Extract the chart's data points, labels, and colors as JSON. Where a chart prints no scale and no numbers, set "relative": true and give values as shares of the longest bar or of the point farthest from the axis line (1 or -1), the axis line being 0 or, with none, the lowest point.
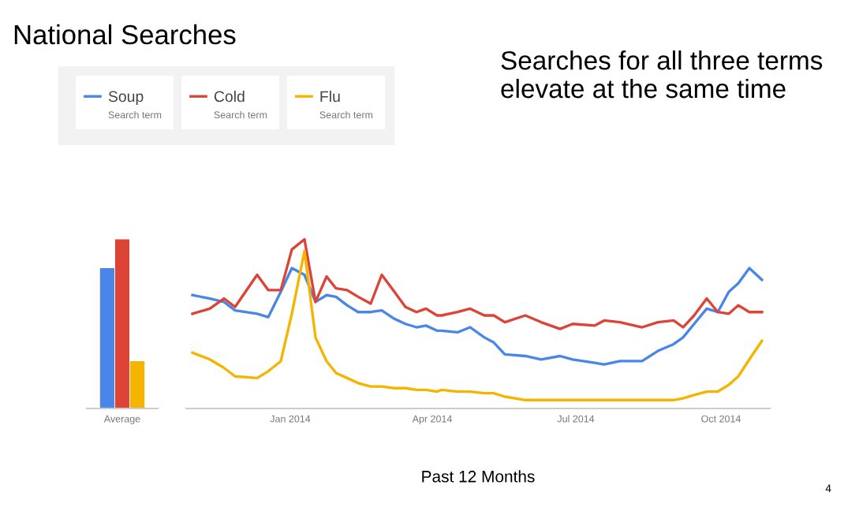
{
  "chart_data": [
    {
      "type": "bar",
      "title": "National Searches",
      "categories": [
        "Average"
      ],
      "relative": true,
      "series": [
        {
          "color": "#4a86e8",
          "values": [
            0.83
          ]
        },
        {
          "color": "#db4437",
          "values": [
            1
          ]
        },
        {
          "color": "#f4b400",
          "values": [
            0.28
          ]
        }
      ]
    },
    {
      "type": "line",
      "relative": true,
      "xlabel": "Past 12 Months",
      "legend": "top left",
      "marker": "none",
      "line_style": "solid",
      "xlim": [
        "2013-10-27",
        "2014-11-01"
      ],
      "xticks": [
        {
          "value": "2014-01-01",
          "label": "Jan 2014"
        },
        {
          "value": "2014-04-01",
          "label": "Apr 2014"
        },
        {
          "value": "2014-07-01",
          "label": "Jul 2014"
        },
        {
          "value": "2014-10-01",
          "label": "Oct 2014"
        }
      ],
      "x": [
        "2013-10-31",
        "2013-11-11",
        "2013-11-20",
        "2013-11-27",
        "2013-12-11",
        "2013-12-18",
        "2013-12-26",
        "2014-01-02",
        "2014-01-10",
        "2014-01-17",
        "2014-01-24",
        "2014-01-30",
        "2014-02-06",
        "2014-02-13",
        "2014-02-21",
        "2014-02-28",
        "2014-03-08",
        "2014-03-15",
        "2014-03-22",
        "2014-03-28",
        "2014-04-04",
        "2014-04-07",
        "2014-04-17",
        "2014-04-25",
        "2014-05-04",
        "2014-05-10",
        "2014-05-17",
        "2014-05-30",
        "2014-06-09",
        "2014-06-21",
        "2014-06-29",
        "2014-07-13",
        "2014-07-19",
        "2014-07-29",
        "2014-08-12",
        "2014-08-22",
        "2014-09-01",
        "2014-09-07",
        "2014-09-14",
        "2014-09-22",
        "2014-09-29",
        "2014-10-06",
        "2014-10-12",
        "2014-10-19",
        "2014-10-27"
      ],
      "series": [
        {
          "name": "Soup",
          "color": "#4a86e8",
          "values": [
            0.67,
            0.65,
            0.63,
            0.58,
            0.56,
            0.54,
            0.69,
            0.83,
            0.79,
            0.63,
            0.67,
            0.66,
            0.61,
            0.57,
            0.57,
            0.58,
            0.53,
            0.5,
            0.48,
            0.49,
            0.46,
            0.46,
            0.45,
            0.48,
            0.42,
            0.39,
            0.32,
            0.31,
            0.29,
            0.31,
            0.29,
            0.27,
            0.26,
            0.28,
            0.28,
            0.34,
            0.38,
            0.42,
            0.5,
            0.59,
            0.57,
            0.69,
            0.74,
            0.83,
            0.76
          ]
        },
        {
          "name": "Cold",
          "color": "#db4437",
          "values": [
            0.56,
            0.59,
            0.65,
            0.6,
            0.79,
            0.7,
            0.7,
            0.94,
            1.0,
            0.63,
            0.78,
            0.71,
            0.7,
            0.66,
            0.62,
            0.79,
            0.69,
            0.6,
            0.57,
            0.59,
            0.55,
            0.55,
            0.57,
            0.59,
            0.55,
            0.55,
            0.51,
            0.55,
            0.51,
            0.47,
            0.5,
            0.49,
            0.52,
            0.51,
            0.48,
            0.51,
            0.52,
            0.48,
            0.55,
            0.65,
            0.57,
            0.56,
            0.61,
            0.57,
            0.57
          ]
        },
        {
          "name": "Flu",
          "color": "#f4b400",
          "values": [
            0.33,
            0.29,
            0.24,
            0.19,
            0.18,
            0.22,
            0.28,
            0.56,
            0.93,
            0.42,
            0.28,
            0.21,
            0.18,
            0.15,
            0.13,
            0.13,
            0.12,
            0.12,
            0.11,
            0.11,
            0.1,
            0.11,
            0.1,
            0.1,
            0.09,
            0.09,
            0.07,
            0.05,
            0.05,
            0.05,
            0.05,
            0.05,
            0.05,
            0.05,
            0.05,
            0.05,
            0.05,
            0.06,
            0.08,
            0.1,
            0.1,
            0.14,
            0.19,
            0.29,
            0.4
          ]
        }
      ],
      "annotations": [
        "Searches for all three terms elevate at the same time",
        "Search term",
        "Search term",
        "Search term",
        "4"
      ]
    }
  ]
}
